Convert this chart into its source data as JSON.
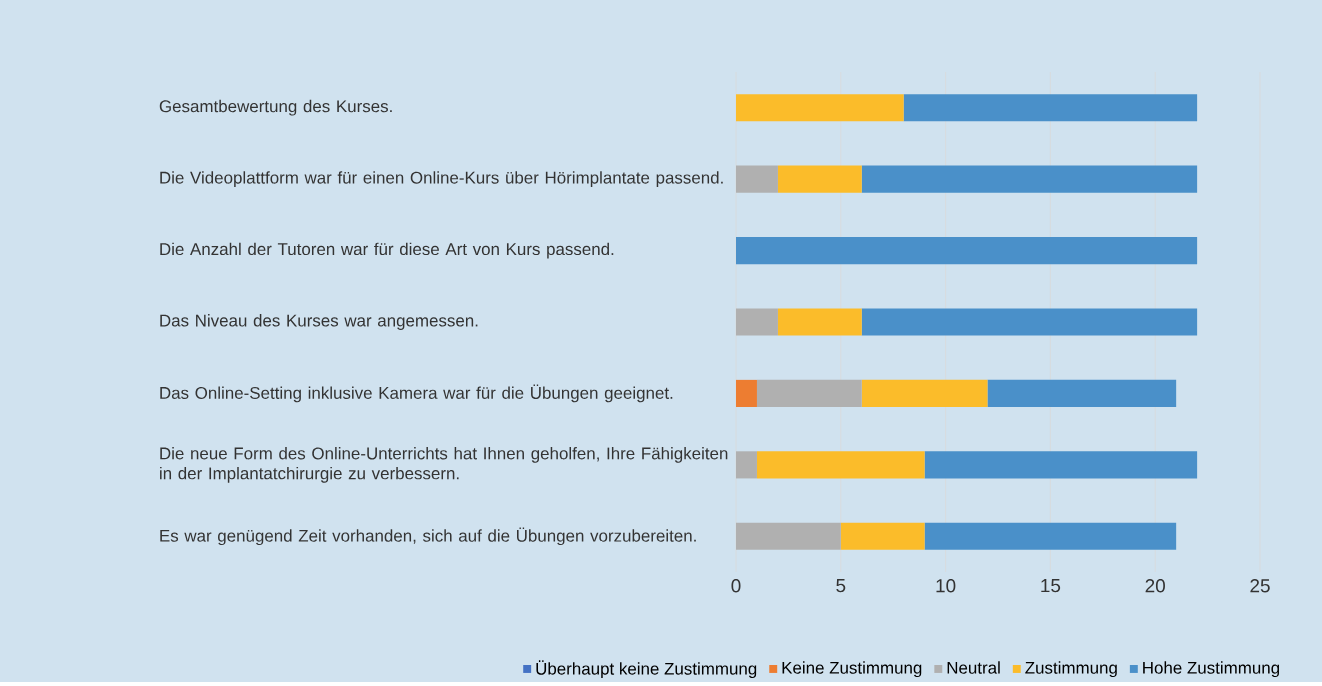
{
  "chart_data": {
    "type": "bar",
    "orientation": "horizontal",
    "stacked": true,
    "categories": [
      "Gesamtbewertung des Kurses.",
      "Die Videoplattform war für einen Online-Kurs über Hörimplantate passend.",
      "Die Anzahl der Tutoren war für diese Art von Kurs passend.",
      "Das Niveau des Kurses war angemessen.",
      "Das Online-Setting inklusive Kamera war für die Übungen geeignet.",
      "Die  neue Form des Online-Unterrichts hat Ihnen geholfen, Ihre Fähigkeiten in der Implantatchirurgie zu verbessern.",
      "Es war genügend Zeit vorhanden, sich auf die Übungen vorzubereiten."
    ],
    "series": [
      {
        "name": "Überhaupt keine Zustimmung",
        "color": "#4472c4",
        "values": [
          0,
          0,
          0,
          0,
          0,
          0,
          0
        ]
      },
      {
        "name": "Keine Zustimmung",
        "color": "#ed7d31",
        "values": [
          0,
          0,
          0,
          0,
          1,
          0,
          0
        ]
      },
      {
        "name": "Neutral",
        "color": "#b0b0b0",
        "values": [
          0,
          2,
          0,
          2,
          5,
          1,
          5
        ]
      },
      {
        "name": "Zustimmung",
        "color": "#fbbc2a",
        "values": [
          8,
          4,
          0,
          4,
          6,
          8,
          4
        ]
      },
      {
        "name": "Hohe Zustimmung",
        "color": "#4a90c9",
        "values": [
          14,
          16,
          22,
          16,
          9,
          13,
          12
        ]
      }
    ],
    "xlim": [
      0,
      25
    ],
    "xticks": [
      0,
      5,
      10,
      15,
      20,
      25
    ],
    "grid": "x",
    "legend": "bottom"
  }
}
